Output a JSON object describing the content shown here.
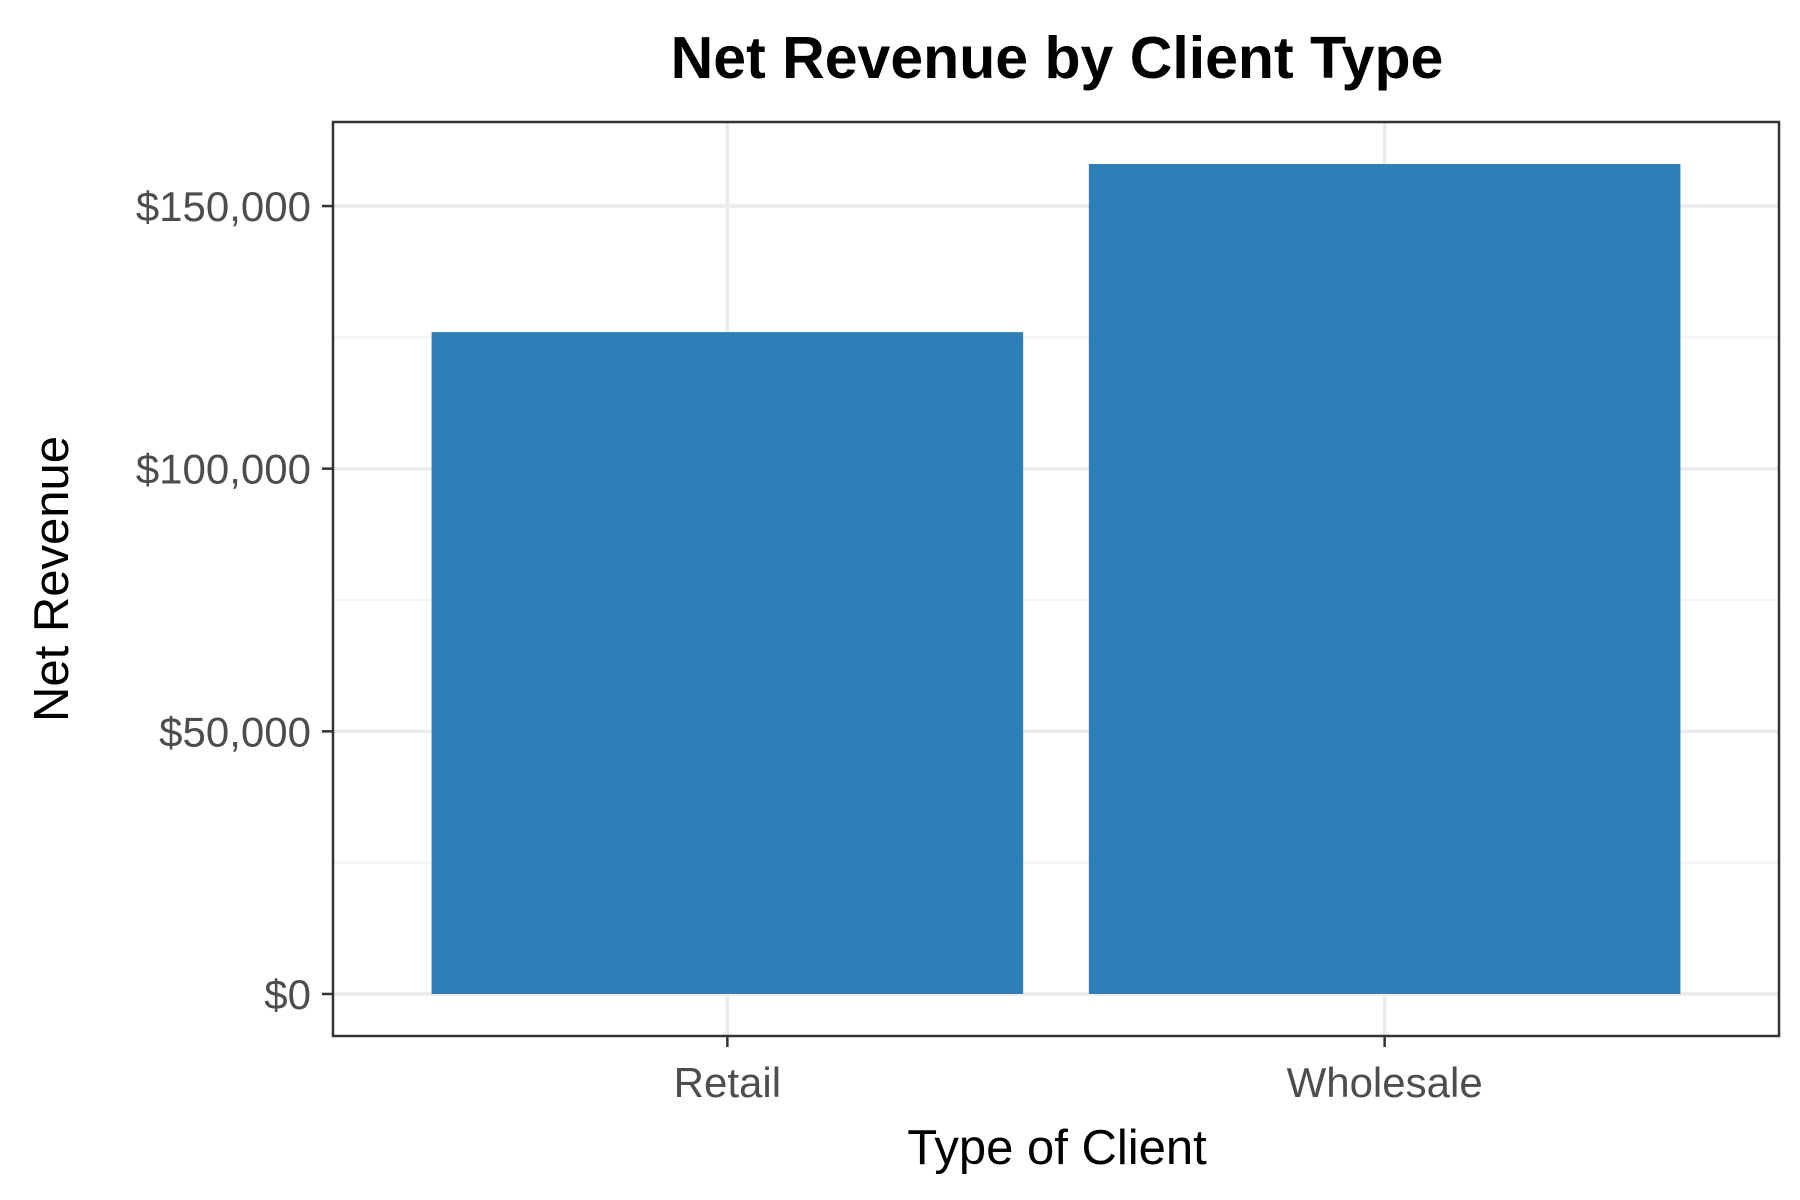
{
  "chart_data": {
    "type": "bar",
    "title": "Net Revenue by Client Type",
    "xlabel": "Type of Client",
    "ylabel": "Net Revenue",
    "categories": [
      "Retail",
      "Wholesale"
    ],
    "values": [
      126000,
      158000
    ],
    "ylim": [
      -8000,
      166000
    ],
    "yticks": [
      0,
      50000,
      100000,
      150000
    ],
    "ytick_labels": [
      "$0",
      "$50,000",
      "$100,000",
      "$150,000"
    ],
    "grid": true,
    "bar_color": "#2e7eb8",
    "legend": "none"
  }
}
